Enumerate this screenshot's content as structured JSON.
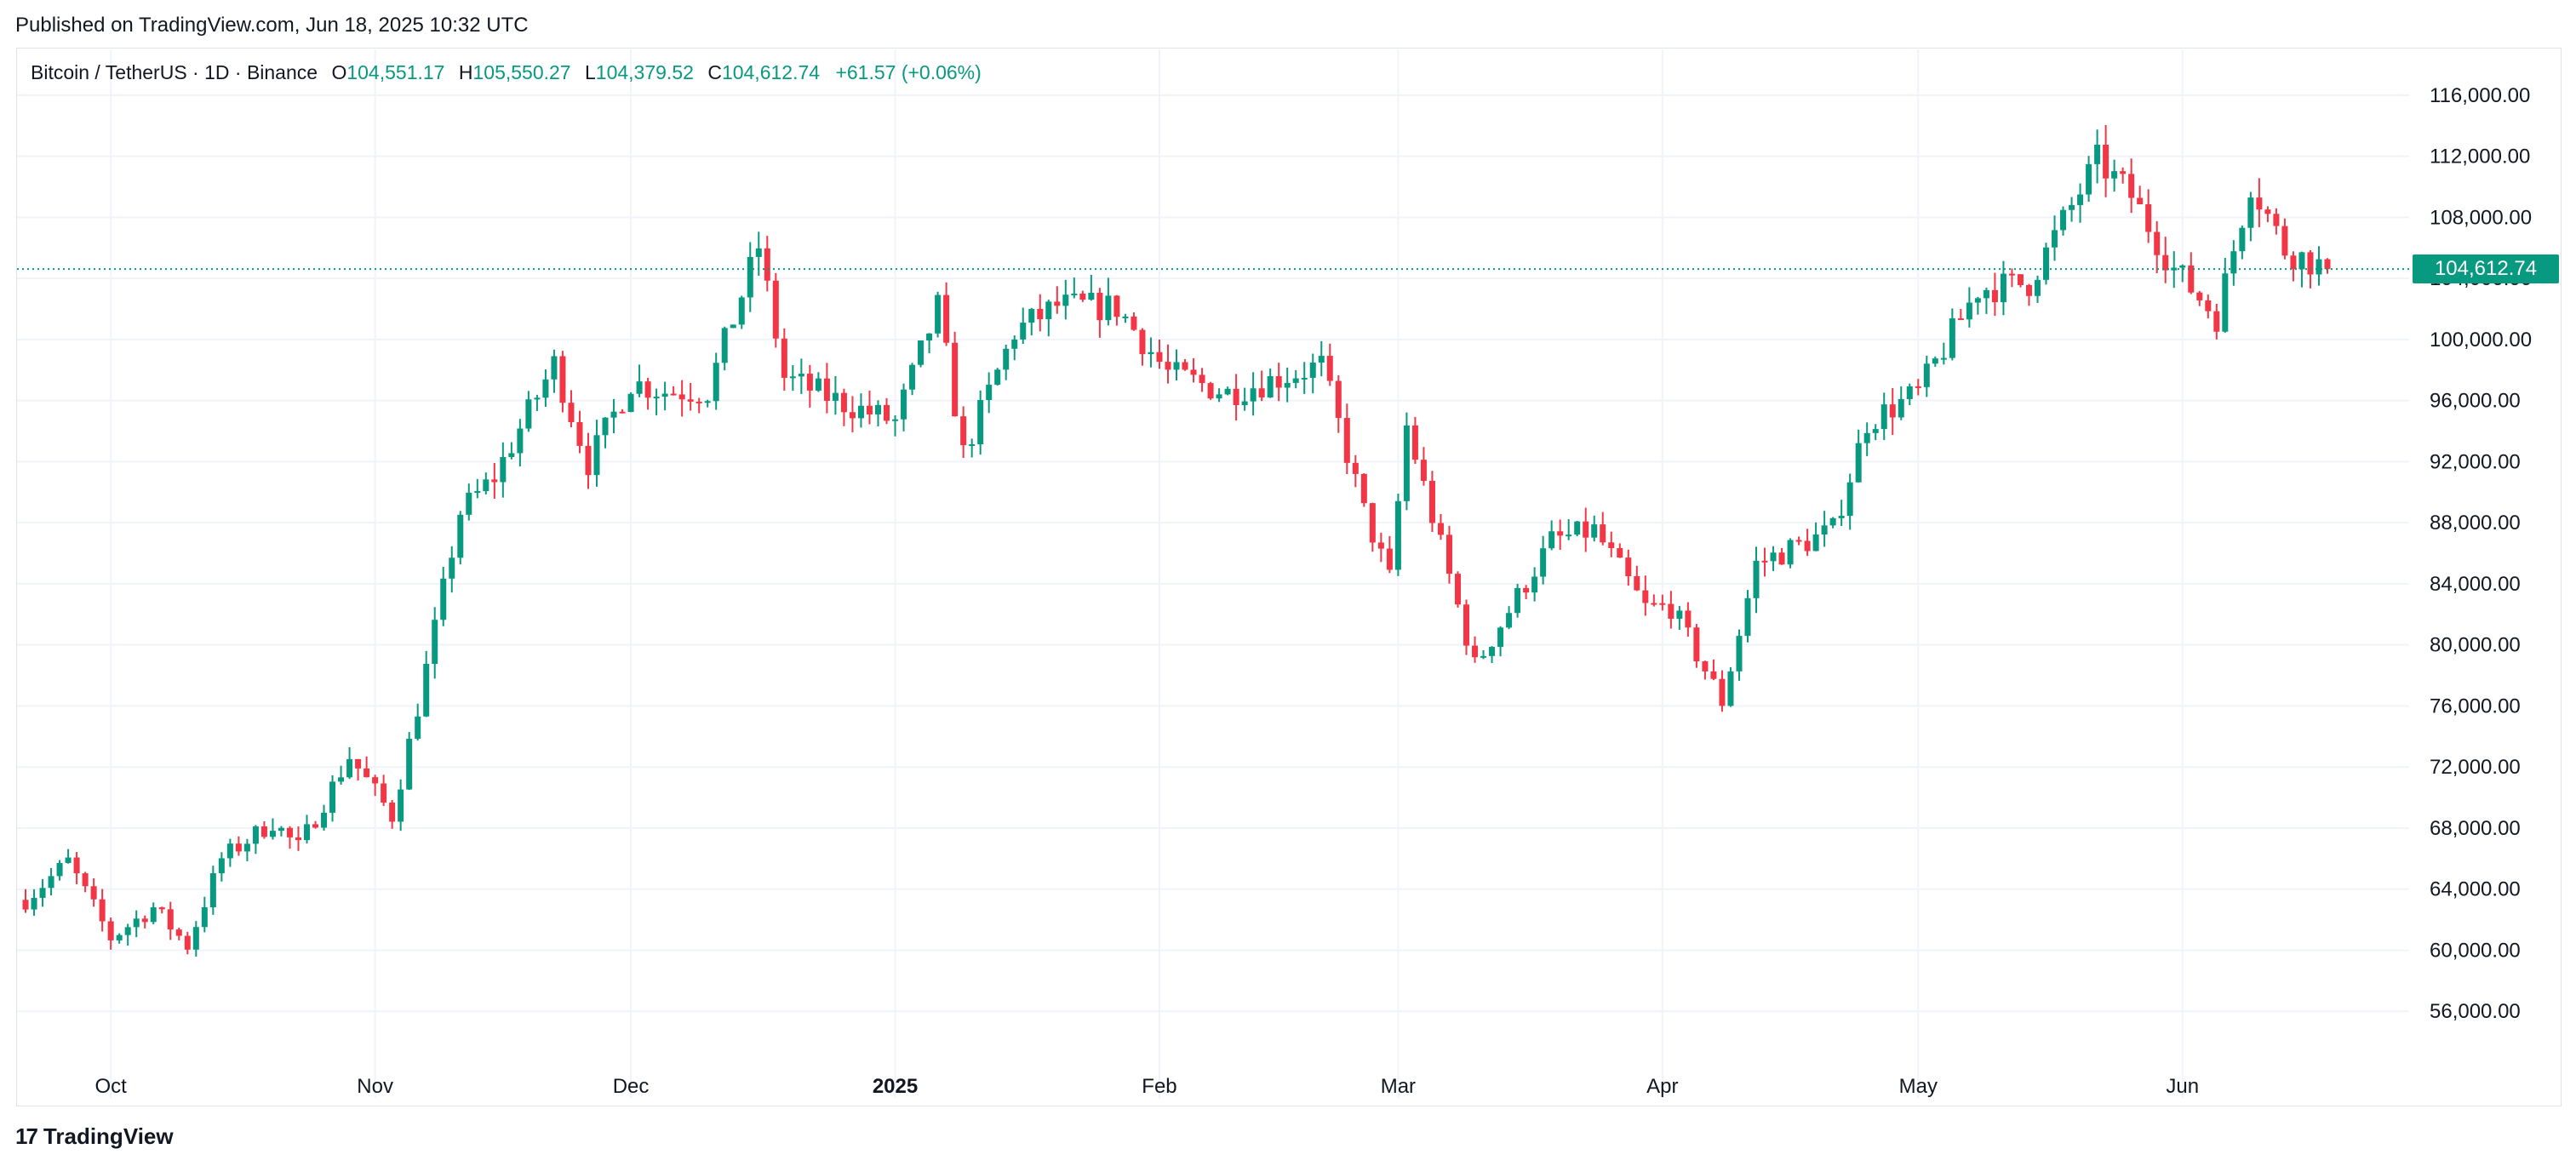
{
  "header": {
    "published": "Published on TradingView.com, Jun 18, 2025 10:32 UTC"
  },
  "legend": {
    "symbol": "Bitcoin / TetherUS · 1D · Binance",
    "open_label": "O",
    "open": "104,551.17",
    "high_label": "H",
    "high": "105,550.27",
    "low_label": "L",
    "low": "104,379.52",
    "close_label": "C",
    "close": "104,612.74",
    "change": "+61.57 (+0.06%)"
  },
  "last_price_tag": "104,612.74",
  "brand": "TradingView",
  "colors": {
    "up": "#089981",
    "down": "#f23645",
    "grid": "#f0f3fa",
    "text": "#131722"
  },
  "chart_data": {
    "type": "candlestick",
    "title": "",
    "ylim": [
      52000,
      119000
    ],
    "y_ticks": [
      56000,
      60000,
      64000,
      68000,
      72000,
      76000,
      80000,
      84000,
      88000,
      92000,
      96000,
      100000,
      104000,
      108000,
      112000,
      116000
    ],
    "y_tick_labels": [
      "56,000.00",
      "60,000.00",
      "64,000.00",
      "68,000.00",
      "72,000.00",
      "76,000.00",
      "80,000.00",
      "84,000.00",
      "88,000.00",
      "92,000.00",
      "96,000.00",
      "100,000.00",
      "104,000.00",
      "108,000.00",
      "112,000.00",
      "116,000.00"
    ],
    "x_ticks": [
      {
        "label": "Oct",
        "date": "2024-10-01"
      },
      {
        "label": "Nov",
        "date": "2024-11-01"
      },
      {
        "label": "Dec",
        "date": "2024-12-01"
      },
      {
        "label": "2025",
        "date": "2025-01-01"
      },
      {
        "label": "Feb",
        "date": "2025-02-01"
      },
      {
        "label": "Mar",
        "date": "2025-03-01"
      },
      {
        "label": "Apr",
        "date": "2025-04-01"
      },
      {
        "label": "May",
        "date": "2025-05-01"
      },
      {
        "label": "Jun",
        "date": "2025-06-01"
      }
    ],
    "last_price": 104612.74,
    "grid": true,
    "close_series": [
      {
        "date": "2024-09-21",
        "close": 63300
      },
      {
        "date": "2024-09-26",
        "close": 65800
      },
      {
        "date": "2024-10-01",
        "close": 60800
      },
      {
        "date": "2024-10-06",
        "close": 62800
      },
      {
        "date": "2024-10-10",
        "close": 60300
      },
      {
        "date": "2024-10-14",
        "close": 66000
      },
      {
        "date": "2024-10-20",
        "close": 68400
      },
      {
        "date": "2024-10-23",
        "close": 66700
      },
      {
        "date": "2024-10-29",
        "close": 72700
      },
      {
        "date": "2024-11-03",
        "close": 68800
      },
      {
        "date": "2024-11-06",
        "close": 75900
      },
      {
        "date": "2024-11-11",
        "close": 88700
      },
      {
        "date": "2024-11-15",
        "close": 91000
      },
      {
        "date": "2024-11-22",
        "close": 98400
      },
      {
        "date": "2024-11-26",
        "close": 91900
      },
      {
        "date": "2024-12-01",
        "close": 97200
      },
      {
        "date": "2024-12-05",
        "close": 96600
      },
      {
        "date": "2024-12-10",
        "close": 96600
      },
      {
        "date": "2024-12-16",
        "close": 106100
      },
      {
        "date": "2024-12-19",
        "close": 97500
      },
      {
        "date": "2024-12-26",
        "close": 95800
      },
      {
        "date": "2025-01-01",
        "close": 94600
      },
      {
        "date": "2025-01-06",
        "close": 102100
      },
      {
        "date": "2025-01-09",
        "close": 92500
      },
      {
        "date": "2025-01-15",
        "close": 100500
      },
      {
        "date": "2025-01-20",
        "close": 102200
      },
      {
        "date": "2025-01-27",
        "close": 102100
      },
      {
        "date": "2025-02-02",
        "close": 97800
      },
      {
        "date": "2025-02-09",
        "close": 96500
      },
      {
        "date": "2025-02-20",
        "close": 98300
      },
      {
        "date": "2025-02-25",
        "close": 88700
      },
      {
        "date": "2025-02-28",
        "close": 84300
      },
      {
        "date": "2025-03-02",
        "close": 94300
      },
      {
        "date": "2025-03-10",
        "close": 78600
      },
      {
        "date": "2025-03-19",
        "close": 86800
      },
      {
        "date": "2025-03-24",
        "close": 87500
      },
      {
        "date": "2025-03-30",
        "close": 82400
      },
      {
        "date": "2025-04-02",
        "close": 82500
      },
      {
        "date": "2025-04-08",
        "close": 76300
      },
      {
        "date": "2025-04-12",
        "close": 85300
      },
      {
        "date": "2025-04-21",
        "close": 87500
      },
      {
        "date": "2025-04-25",
        "close": 94600
      },
      {
        "date": "2025-05-01",
        "close": 96500
      },
      {
        "date": "2025-05-08",
        "close": 103300
      },
      {
        "date": "2025-05-14",
        "close": 103700
      },
      {
        "date": "2025-05-22",
        "close": 111700
      },
      {
        "date": "2025-05-26",
        "close": 109400
      },
      {
        "date": "2025-05-31",
        "close": 104600
      },
      {
        "date": "2025-06-05",
        "close": 101500
      },
      {
        "date": "2025-06-09",
        "close": 110300
      },
      {
        "date": "2025-06-13",
        "close": 105900
      },
      {
        "date": "2025-06-18",
        "close": 104612.74
      }
    ]
  }
}
